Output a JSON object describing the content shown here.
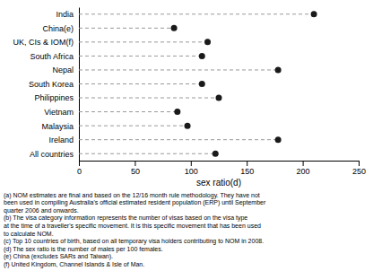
{
  "chart_data": {
    "type": "dot",
    "categories": [
      "India",
      "China(e)",
      "UK, CIs & IOM(f)",
      "South Africa",
      "Nepal",
      "South Korea",
      "Philippines",
      "Vietnam",
      "Malaysia",
      "Ireland",
      "All countries"
    ],
    "values": [
      210,
      85,
      115,
      110,
      178,
      110,
      125,
      88,
      97,
      178,
      122
    ],
    "color": "#1a1a1a",
    "line_style": "dashed",
    "x_label": "sex ratio(d)",
    "xlim": [
      0,
      250
    ],
    "xticks": [
      0,
      50,
      100,
      150,
      200,
      250
    ],
    "grid": false,
    "annotations": [
      "(a) NOM estimates are final and based on the 12/16 month rule methodology. They have not",
      "been used in compiling Australia's official estimated resident population (ERP) until September",
      "quarter 2006 and onwards.",
      "(b) The visa category information represents the number of visas based on the visa type",
      "at the time of a traveller's specific movement. It is this specific movement that has been used",
      "to calculate NOM.",
      "(c) Top 10 countries of birth, based on all temporary visa holders contributing to NOM in 2008.",
      "(d) The sex ratio is the number of males per 100 females.",
      "(e) China (excludes SARs and Taiwan).",
      "(f) United Kingdom, Channel Islands & Isle of Man."
    ]
  }
}
